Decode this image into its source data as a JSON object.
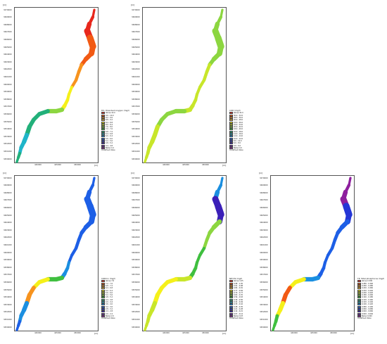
{
  "common": {
    "unit": "[m]",
    "y_ticks": [
      "3470000",
      "3469000",
      "3468000",
      "3467000",
      "3466000",
      "3465000",
      "3464000",
      "3463000",
      "3462000",
      "3461000",
      "3460000",
      "3459000",
      "3458000",
      "3457000",
      "3456000",
      "3455000",
      "3454000",
      "3453000",
      "3452000",
      "3451000",
      "3450000"
    ],
    "x_ticks": [
      "440000",
      "445000",
      "450000"
    ],
    "colors": {
      "red": "#e8271c",
      "orange_red": "#f25a14",
      "orange": "#f7931e",
      "yellow_orange": "#fbc02d",
      "yellow": "#f5f01a",
      "yellow_green": "#c8e62a",
      "light_green": "#8cd640",
      "green": "#3fbf3f",
      "teal_green": "#22b07a",
      "cyan": "#1fb5c9",
      "sky": "#1b8fe0",
      "blue": "#1d5fe6",
      "deep_blue": "#2536d6",
      "indigo": "#3b1fb8",
      "violet": "#6a1fa8",
      "purple": "#8e1f9e"
    }
  },
  "panels": [
    {
      "id": "do",
      "legend": {
        "title": "DO, Dissolved oxygen (mg/l)",
        "entries": [
          {
            "label": "Above 10.0",
            "color": "#e8271c"
          },
          {
            "label": "9.6 - 10.0",
            "color": "#f25a14"
          },
          {
            "label": "9.2 - 9.6",
            "color": "#f7931e"
          },
          {
            "label": "8.8 - 9.2",
            "color": "#fbc02d"
          },
          {
            "label": "8.4 - 8.8",
            "color": "#f5f01a"
          },
          {
            "label": "8.0 - 8.4",
            "color": "#c8e62a"
          },
          {
            "label": "7.6 - 8.0",
            "color": "#8cd640"
          },
          {
            "label": "7.2 - 7.6",
            "color": "#3fbf3f"
          },
          {
            "label": "6.8 - 7.2",
            "color": "#22b07a"
          },
          {
            "label": "6.4 - 6.8",
            "color": "#1fb5c9"
          },
          {
            "label": "6.0 - 6.4",
            "color": "#1b8fe0"
          },
          {
            "label": "5.6 - 6.0",
            "color": "#1d5fe6"
          },
          {
            "label": "5.2 - 5.6",
            "color": "#2536d6"
          },
          {
            "label": "4.8 - 5.2",
            "color": "#3b1fb8"
          },
          {
            "label": "4.4 - 4.8",
            "color": "#6a1fa8"
          },
          {
            "label": "Below 4.4",
            "color": "#8e1f9e"
          }
        ],
        "extra": "Undefined Value"
      }
    },
    {
      "id": "cod",
      "legend": {
        "title": "COD (mg/l)",
        "entries": [
          {
            "label": "Above 32.0",
            "color": "#e8271c"
          },
          {
            "label": "30.0 - 32.0",
            "color": "#f25a14"
          },
          {
            "label": "28.0 - 30.0",
            "color": "#f7931e"
          },
          {
            "label": "26.0 - 28.0",
            "color": "#fbc02d"
          },
          {
            "label": "24.0 - 26.0",
            "color": "#f5f01a"
          },
          {
            "label": "22.0 - 24.0",
            "color": "#c8e62a"
          },
          {
            "label": "20.0 - 22.0",
            "color": "#8cd640"
          },
          {
            "label": "18.0 - 20.0",
            "color": "#3fbf3f"
          },
          {
            "label": "16.0 - 18.0",
            "color": "#22b07a"
          },
          {
            "label": "14.0 - 16.0",
            "color": "#1fb5c9"
          },
          {
            "label": "12.0 - 14.0",
            "color": "#1b8fe0"
          },
          {
            "label": "10.0 - 12.0",
            "color": "#1d5fe6"
          },
          {
            "label": "8.0 - 10.0",
            "color": "#2536d6"
          },
          {
            "label": "6.0 - 8.0",
            "color": "#3b1fb8"
          },
          {
            "label": "4.0 - 6.0",
            "color": "#6a1fa8"
          },
          {
            "label": "Below 4.0",
            "color": "#8e1f9e"
          }
        ],
        "extra": "Undefined Value"
      }
    },
    {
      "id": "cod_mn",
      "legend": {
        "title": "CODmn (mg/l)",
        "entries": [
          {
            "label": "Above 7.6",
            "color": "#e8271c"
          },
          {
            "label": "7.2 - 7.6",
            "color": "#f25a14"
          },
          {
            "label": "6.8 - 7.2",
            "color": "#f7931e"
          },
          {
            "label": "6.4 - 6.8",
            "color": "#fbc02d"
          },
          {
            "label": "6.0 - 6.4",
            "color": "#f5f01a"
          },
          {
            "label": "5.6 - 6.0",
            "color": "#c8e62a"
          },
          {
            "label": "5.2 - 5.6",
            "color": "#8cd640"
          },
          {
            "label": "4.8 - 5.2",
            "color": "#3fbf3f"
          },
          {
            "label": "4.4 - 4.8",
            "color": "#22b07a"
          },
          {
            "label": "4.0 - 4.4",
            "color": "#1fb5c9"
          },
          {
            "label": "3.6 - 4.0",
            "color": "#1b8fe0"
          },
          {
            "label": "3.2 - 3.6",
            "color": "#1d5fe6"
          },
          {
            "label": "2.8 - 3.2",
            "color": "#2536d6"
          },
          {
            "label": "2.4 - 2.8",
            "color": "#3b1fb8"
          },
          {
            "label": "2.0 - 2.4",
            "color": "#6a1fa8"
          },
          {
            "label": "Below 2.0",
            "color": "#8e1f9e"
          }
        ],
        "extra": "Undefined Value"
      }
    },
    {
      "id": "nh3n",
      "legend": {
        "title": "NH3-N (mg/l)",
        "entries": [
          {
            "label": "Above 1.05",
            "color": "#e8271c"
          },
          {
            "label": "0.98 - 1.05",
            "color": "#f25a14"
          },
          {
            "label": "0.91 - 0.98",
            "color": "#f7931e"
          },
          {
            "label": "0.84 - 0.91",
            "color": "#fbc02d"
          },
          {
            "label": "0.77 - 0.84",
            "color": "#f5f01a"
          },
          {
            "label": "0.70 - 0.77",
            "color": "#c8e62a"
          },
          {
            "label": "0.63 - 0.70",
            "color": "#8cd640"
          },
          {
            "label": "0.56 - 0.63",
            "color": "#3fbf3f"
          },
          {
            "label": "0.49 - 0.56",
            "color": "#22b07a"
          },
          {
            "label": "0.42 - 0.49",
            "color": "#1fb5c9"
          },
          {
            "label": "0.35 - 0.42",
            "color": "#1b8fe0"
          },
          {
            "label": "0.28 - 0.35",
            "color": "#1d5fe6"
          },
          {
            "label": "0.21 - 0.28",
            "color": "#2536d6"
          },
          {
            "label": "0.14 - 0.21",
            "color": "#3b1fb8"
          },
          {
            "label": "0.07 - 0.14",
            "color": "#6a1fa8"
          },
          {
            "label": "Below 0.07",
            "color": "#8e1f9e"
          }
        ],
        "extra": "Undefined Value"
      }
    },
    {
      "id": "tp",
      "legend": {
        "title": "TP, Total phosphorus (mg/l)",
        "entries": [
          {
            "label": "Above 0.300",
            "color": "#e8271c"
          },
          {
            "label": "0.280 - 0.300",
            "color": "#f25a14"
          },
          {
            "label": "0.260 - 0.280",
            "color": "#f7931e"
          },
          {
            "label": "0.240 - 0.260",
            "color": "#fbc02d"
          },
          {
            "label": "0.220 - 0.240",
            "color": "#f5f01a"
          },
          {
            "label": "0.200 - 0.220",
            "color": "#c8e62a"
          },
          {
            "label": "0.180 - 0.200",
            "color": "#8cd640"
          },
          {
            "label": "0.160 - 0.180",
            "color": "#3fbf3f"
          },
          {
            "label": "0.140 - 0.160",
            "color": "#22b07a"
          },
          {
            "label": "0.120 - 0.140",
            "color": "#1fb5c9"
          },
          {
            "label": "0.100 - 0.120",
            "color": "#1b8fe0"
          },
          {
            "label": "0.080 - 0.100",
            "color": "#1d5fe6"
          },
          {
            "label": "0.060 - 0.080",
            "color": "#2536d6"
          },
          {
            "label": "0.040 - 0.060",
            "color": "#3b1fb8"
          },
          {
            "label": "0.020 - 0.040",
            "color": "#6a1fa8"
          },
          {
            "label": "Below 0.020",
            "color": "#8e1f9e"
          }
        ],
        "extra": "Undefined Value"
      }
    }
  ]
}
